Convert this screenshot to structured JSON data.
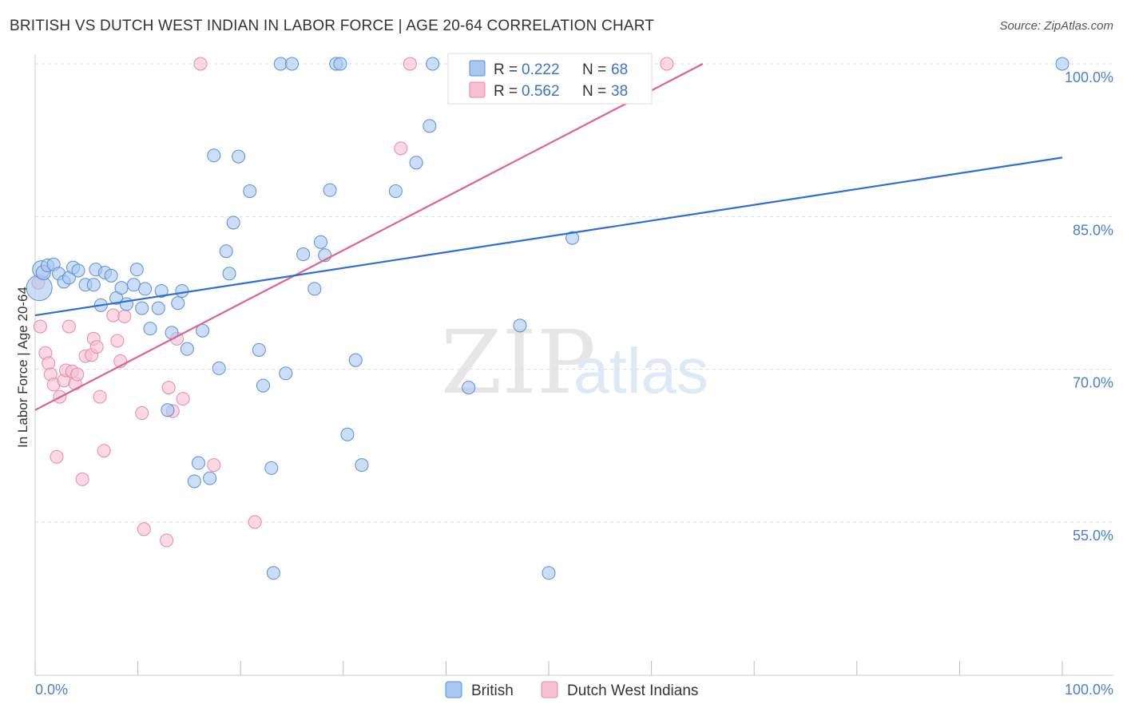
{
  "header": {
    "title": "BRITISH VS DUTCH WEST INDIAN IN LABOR FORCE | AGE 20-64 CORRELATION CHART",
    "source": "Source: ZipAtlas.com"
  },
  "watermark": {
    "zip": "ZIP",
    "atlas": "atlas"
  },
  "colors": {
    "british_fill": "#a9c8f0",
    "british_stroke": "#5a8fd6",
    "british_line": "#2c6fd0",
    "dutch_fill": "#f7bfd0",
    "dutch_stroke": "#e58aa8",
    "dutch_line": "#e0628e",
    "grid": "#dddddd",
    "tick_text": "#4a7fd0"
  },
  "legend": {
    "british": {
      "r_label": "R = ",
      "r_value": "0.222",
      "n_label": "N = ",
      "n_value": "68"
    },
    "dutch": {
      "r_label": "R = ",
      "r_value": "0.562",
      "n_label": "N = ",
      "n_value": "38"
    }
  },
  "bottom_legend": {
    "british": "British",
    "dutch": "Dutch West Indians"
  },
  "chart_data": {
    "type": "scatter",
    "title": "BRITISH VS DUTCH WEST INDIAN IN LABOR FORCE | AGE 20-64 CORRELATION CHART",
    "xlabel": "",
    "ylabel": "In Labor Force | Age 20-64",
    "xlim": [
      0,
      100
    ],
    "ylim": [
      40,
      101
    ],
    "x_tick_labels": [
      "0.0%",
      "100.0%"
    ],
    "y_ticks": [
      55,
      70,
      85,
      100
    ],
    "y_tick_labels": [
      "55.0%",
      "70.0%",
      "85.0%",
      "100.0%"
    ],
    "grid": true,
    "series": [
      {
        "name": "British",
        "R": 0.222,
        "N": 68,
        "trend": {
          "x": [
            0,
            100
          ],
          "y": [
            75.3,
            90.8
          ]
        },
        "points": [
          [
            0.4,
            78.0,
            16
          ],
          [
            0.6,
            79.8,
            11
          ],
          [
            0.8,
            79.5,
            9
          ],
          [
            1.2,
            80.2,
            8
          ],
          [
            1.8,
            80.3,
            8
          ],
          [
            2.3,
            79.4,
            8
          ],
          [
            2.8,
            78.6,
            8
          ],
          [
            3.3,
            79.0,
            8
          ],
          [
            3.7,
            80.0,
            8
          ],
          [
            4.2,
            79.7,
            8
          ],
          [
            4.9,
            78.3,
            8
          ],
          [
            5.7,
            78.3,
            8
          ],
          [
            5.9,
            79.8,
            8
          ],
          [
            6.4,
            76.3,
            8
          ],
          [
            6.8,
            79.5,
            8
          ],
          [
            7.4,
            79.2,
            8
          ],
          [
            7.9,
            77.0,
            8
          ],
          [
            8.4,
            78.0,
            8
          ],
          [
            8.9,
            76.4,
            8
          ],
          [
            9.6,
            78.3,
            8
          ],
          [
            9.9,
            79.8,
            8
          ],
          [
            10.4,
            76.0,
            8
          ],
          [
            10.7,
            77.9,
            8
          ],
          [
            11.2,
            74.0,
            8
          ],
          [
            12.0,
            76.0,
            8
          ],
          [
            12.3,
            77.7,
            8
          ],
          [
            12.9,
            66.0,
            8
          ],
          [
            13.3,
            73.6,
            8
          ],
          [
            13.9,
            76.5,
            8
          ],
          [
            14.3,
            77.7,
            8
          ],
          [
            14.8,
            72.0,
            8
          ],
          [
            15.9,
            60.8,
            8
          ],
          [
            15.5,
            59.0,
            8
          ],
          [
            16.3,
            73.8,
            8
          ],
          [
            17.0,
            59.3,
            8
          ],
          [
            17.4,
            91.0,
            8
          ],
          [
            17.9,
            70.1,
            8
          ],
          [
            18.6,
            81.6,
            8
          ],
          [
            18.9,
            79.4,
            8
          ],
          [
            19.3,
            84.4,
            8
          ],
          [
            19.8,
            90.9,
            8
          ],
          [
            20.9,
            87.5,
            8
          ],
          [
            21.8,
            71.9,
            8
          ],
          [
            22.2,
            68.4,
            8
          ],
          [
            23.0,
            60.3,
            8
          ],
          [
            23.2,
            50.0,
            8
          ],
          [
            23.9,
            100.0,
            8
          ],
          [
            24.4,
            69.6,
            8
          ],
          [
            25.0,
            100.0,
            8
          ],
          [
            26.1,
            81.3,
            8
          ],
          [
            27.2,
            77.9,
            8
          ],
          [
            27.8,
            82.5,
            8
          ],
          [
            28.2,
            81.2,
            8
          ],
          [
            28.7,
            87.6,
            8
          ],
          [
            29.3,
            100.0,
            8
          ],
          [
            29.7,
            100.0,
            8
          ],
          [
            30.4,
            63.6,
            8
          ],
          [
            31.2,
            70.9,
            8
          ],
          [
            31.8,
            60.6,
            8
          ],
          [
            35.1,
            87.5,
            8
          ],
          [
            37.1,
            90.3,
            8
          ],
          [
            38.4,
            93.9,
            8
          ],
          [
            38.7,
            100.0,
            8
          ],
          [
            42.2,
            68.2,
            8
          ],
          [
            47.2,
            74.3,
            8
          ],
          [
            50.0,
            50.0,
            8
          ],
          [
            52.3,
            82.9,
            8
          ],
          [
            100.0,
            100.0,
            8
          ]
        ]
      },
      {
        "name": "Dutch West Indians",
        "R": 0.562,
        "N": 38,
        "trend": {
          "x": [
            0,
            65
          ],
          "y": [
            66.0,
            100.0
          ]
        },
        "points": [
          [
            0.3,
            78.5,
            8
          ],
          [
            0.5,
            74.2,
            8
          ],
          [
            1.0,
            71.6,
            8
          ],
          [
            1.3,
            70.6,
            8
          ],
          [
            1.5,
            69.5,
            8
          ],
          [
            1.8,
            68.5,
            8
          ],
          [
            2.1,
            61.4,
            8
          ],
          [
            2.4,
            67.3,
            8
          ],
          [
            2.8,
            68.9,
            8
          ],
          [
            3.0,
            69.9,
            8
          ],
          [
            3.3,
            74.2,
            8
          ],
          [
            3.6,
            69.8,
            8
          ],
          [
            3.9,
            68.6,
            8
          ],
          [
            4.1,
            69.5,
            8
          ],
          [
            4.6,
            59.2,
            8
          ],
          [
            4.9,
            71.3,
            8
          ],
          [
            5.5,
            71.4,
            8
          ],
          [
            5.7,
            73.0,
            8
          ],
          [
            6.0,
            72.2,
            8
          ],
          [
            6.3,
            67.3,
            8
          ],
          [
            6.7,
            62.0,
            8
          ],
          [
            7.6,
            75.3,
            8
          ],
          [
            8.0,
            72.8,
            8
          ],
          [
            8.3,
            70.8,
            8
          ],
          [
            8.7,
            75.2,
            8
          ],
          [
            10.4,
            65.7,
            8
          ],
          [
            10.6,
            54.3,
            8
          ],
          [
            12.8,
            53.2,
            8
          ],
          [
            13.0,
            68.2,
            8
          ],
          [
            13.4,
            65.9,
            8
          ],
          [
            13.8,
            73.0,
            8
          ],
          [
            14.4,
            67.1,
            8
          ],
          [
            16.1,
            100.0,
            8
          ],
          [
            17.4,
            60.6,
            8
          ],
          [
            21.4,
            55.0,
            8
          ],
          [
            35.6,
            91.7,
            8
          ],
          [
            36.5,
            100.0,
            8
          ],
          [
            61.5,
            100.0,
            8
          ]
        ]
      }
    ]
  }
}
